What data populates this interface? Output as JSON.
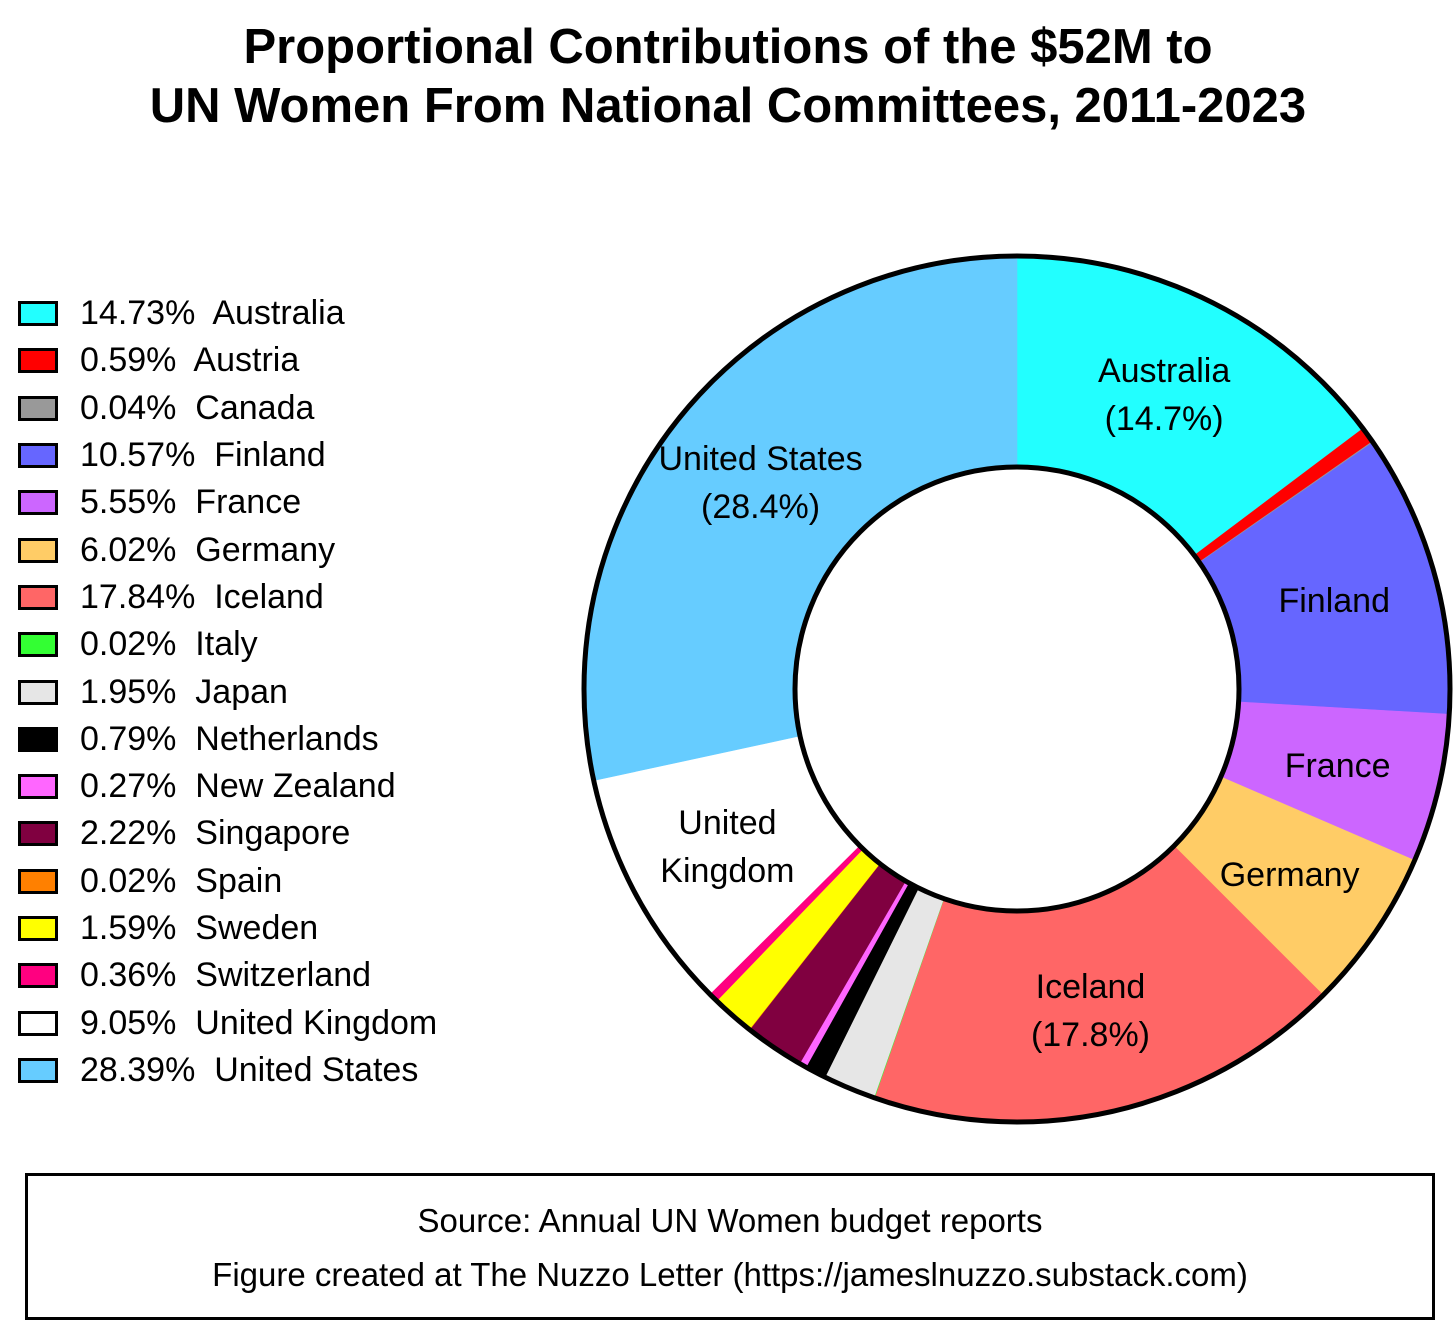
{
  "chart_data": {
    "type": "pie",
    "title": "Proportional Contributions of the $52M to UN Women From National Committees, 2011-2023",
    "title_lines": [
      "Proportional Contributions of the $52M to",
      "UN Women From National Committees, 2011-2023"
    ],
    "unit": "%",
    "slices": [
      {
        "name": "Australia",
        "value": 14.73,
        "color": "#22ffff",
        "legend": "14.73%  Australia",
        "label": [
          "Australia",
          "(14.7%)"
        ]
      },
      {
        "name": "Austria",
        "value": 0.59,
        "color": "#ff0000",
        "legend": "0.59%  Austria"
      },
      {
        "name": "Canada",
        "value": 0.04,
        "color": "#999999",
        "legend": "0.04%  Canada"
      },
      {
        "name": "Finland",
        "value": 10.57,
        "color": "#6666ff",
        "legend": "10.57%  Finland",
        "label": [
          "Finland"
        ]
      },
      {
        "name": "France",
        "value": 5.55,
        "color": "#cc66ff",
        "legend": "5.55%  France",
        "label": [
          "France"
        ]
      },
      {
        "name": "Germany",
        "value": 6.02,
        "color": "#ffcc66",
        "legend": "6.02%  Germany",
        "label": [
          "Germany"
        ]
      },
      {
        "name": "Iceland",
        "value": 17.84,
        "color": "#ff6666",
        "legend": "17.84%  Iceland",
        "label": [
          "Iceland",
          "(17.8%)"
        ]
      },
      {
        "name": "Italy",
        "value": 0.02,
        "color": "#33ff33",
        "legend": "0.02%  Italy"
      },
      {
        "name": "Japan",
        "value": 1.95,
        "color": "#e6e6e6",
        "legend": "1.95%  Japan"
      },
      {
        "name": "Netherlands",
        "value": 0.79,
        "color": "#000000",
        "legend": "0.79%  Netherlands"
      },
      {
        "name": "New Zealand",
        "value": 0.27,
        "color": "#ff66ff",
        "legend": "0.27%  New Zealand"
      },
      {
        "name": "Singapore",
        "value": 2.22,
        "color": "#800040",
        "legend": "2.22%  Singapore"
      },
      {
        "name": "Spain",
        "value": 0.02,
        "color": "#ff8000",
        "legend": "0.02%  Spain"
      },
      {
        "name": "Sweden",
        "value": 1.59,
        "color": "#ffff00",
        "legend": "1.59%  Sweden"
      },
      {
        "name": "Switzerland",
        "value": 0.36,
        "color": "#ff0080",
        "legend": "0.36%  Switzerland"
      },
      {
        "name": "United Kingdom",
        "value": 9.05,
        "color": "#ffffff",
        "legend": "9.05%  United Kingdom",
        "label": [
          "United",
          "Kingdom"
        ]
      },
      {
        "name": "United States",
        "value": 28.39,
        "color": "#66ccff",
        "legend": "28.39%  United States",
        "label": [
          "United States",
          "(28.4%)"
        ]
      }
    ]
  },
  "source": {
    "line1": "Source: Annual UN Women budget reports",
    "line2": "Figure created at The Nuzzo Letter (https://jameslnuzzo.substack.com)"
  }
}
